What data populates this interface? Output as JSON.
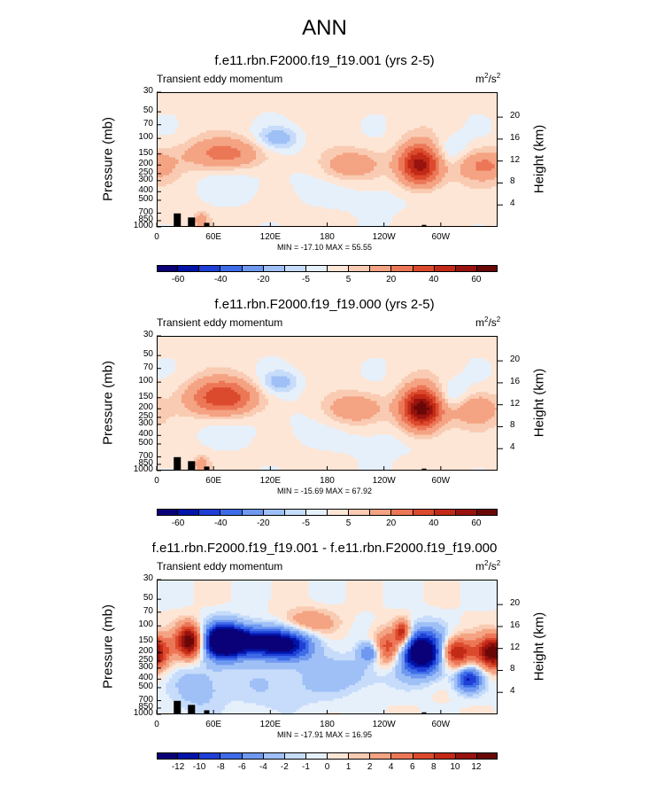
{
  "title": "ANN",
  "chart_data": [
    {
      "type": "heatmap",
      "title": "f.e11.rbn.F2000.f19_f19.001 (yrs 2-5)",
      "subtitle": "Transient eddy momentum",
      "units_base": "m",
      "units_exp1": "2",
      "units_mid": "/s",
      "units_exp2": "2",
      "ylabel": "Pressure (mb)",
      "y2label": "Height (km)",
      "y_ticks": [
        "30",
        "50",
        "70",
        "100",
        "150",
        "200",
        "250",
        "300",
        "400",
        "500",
        "700",
        "850",
        "1000"
      ],
      "y_tick_values": [
        30,
        50,
        70,
        100,
        150,
        200,
        250,
        300,
        400,
        500,
        700,
        850,
        1000
      ],
      "height_ticks": [
        "4",
        "8",
        "12",
        "16",
        "20"
      ],
      "height_tick_values": [
        4,
        8,
        12,
        16,
        20
      ],
      "x_ticks": [
        "0",
        "60E",
        "120E",
        "180",
        "120W",
        "60W"
      ],
      "x_tick_values": [
        0,
        60,
        120,
        180,
        240,
        300
      ],
      "xlim": [
        0,
        360
      ],
      "ylim": [
        1000,
        30
      ],
      "min_max_text": "MIN = -17.10  MAX =  55.55",
      "colorbar_labels": [
        "-60",
        "-40",
        "-20",
        "-5",
        "5",
        "20",
        "40",
        "60"
      ],
      "features": [
        {
          "lon": 72,
          "p": 150,
          "v": 25,
          "dlon": 28,
          "dlogp": 0.12
        },
        {
          "lon": 278,
          "p": 200,
          "v": 55,
          "dlon": 15,
          "dlogp": 0.16
        },
        {
          "lon": 205,
          "p": 200,
          "v": 17,
          "dlon": 22,
          "dlogp": 0.12
        },
        {
          "lon": 345,
          "p": 200,
          "v": 20,
          "dlon": 22,
          "dlogp": 0.12
        },
        {
          "lon": 128,
          "p": 100,
          "v": -15,
          "dlon": 15,
          "dlogp": 0.09
        },
        {
          "lon": 310,
          "p": 150,
          "v": -10,
          "dlon": 14,
          "dlogp": 0.12
        },
        {
          "lon": 100,
          "p": 250,
          "v": -4,
          "dlon": 40,
          "dlogp": 0.25
        },
        {
          "lon": 230,
          "p": 400,
          "v": -4,
          "dlon": 35,
          "dlogp": 0.2
        },
        {
          "lon": 47,
          "p": 850,
          "v": 15,
          "dlon": 6,
          "dlogp": 0.07
        }
      ]
    },
    {
      "type": "heatmap",
      "title": "f.e11.rbn.F2000.f19_f19.000 (yrs 2-5)",
      "subtitle": "Transient eddy momentum",
      "units_base": "m",
      "units_exp1": "2",
      "units_mid": "/s",
      "units_exp2": "2",
      "ylabel": "Pressure (mb)",
      "y2label": "Height (km)",
      "y_ticks": [
        "30",
        "50",
        "70",
        "100",
        "150",
        "200",
        "250",
        "300",
        "400",
        "500",
        "700",
        "850",
        "1000"
      ],
      "y_tick_values": [
        30,
        50,
        70,
        100,
        150,
        200,
        250,
        300,
        400,
        500,
        700,
        850,
        1000
      ],
      "height_ticks": [
        "4",
        "8",
        "12",
        "16",
        "20"
      ],
      "height_tick_values": [
        4,
        8,
        12,
        16,
        20
      ],
      "x_ticks": [
        "0",
        "60E",
        "120E",
        "180",
        "120W",
        "60W"
      ],
      "x_tick_values": [
        0,
        60,
        120,
        180,
        240,
        300
      ],
      "xlim": [
        0,
        360
      ],
      "ylim": [
        1000,
        30
      ],
      "min_max_text": "MIN = -15.69  MAX =  67.92",
      "colorbar_labels": [
        "-60",
        "-40",
        "-20",
        "-5",
        "5",
        "20",
        "40",
        "60"
      ],
      "features": [
        {
          "lon": 70,
          "p": 150,
          "v": 40,
          "dlon": 25,
          "dlogp": 0.14
        },
        {
          "lon": 280,
          "p": 200,
          "v": 67,
          "dlon": 15,
          "dlogp": 0.16
        },
        {
          "lon": 208,
          "p": 200,
          "v": 18,
          "dlon": 22,
          "dlogp": 0.12
        },
        {
          "lon": 335,
          "p": 200,
          "v": 18,
          "dlon": 18,
          "dlogp": 0.12
        },
        {
          "lon": 130,
          "p": 100,
          "v": -14,
          "dlon": 14,
          "dlogp": 0.09
        },
        {
          "lon": 310,
          "p": 150,
          "v": -12,
          "dlon": 14,
          "dlogp": 0.12
        },
        {
          "lon": 100,
          "p": 250,
          "v": -4,
          "dlon": 40,
          "dlogp": 0.25
        },
        {
          "lon": 235,
          "p": 400,
          "v": -4,
          "dlon": 35,
          "dlogp": 0.2
        },
        {
          "lon": 47,
          "p": 850,
          "v": 15,
          "dlon": 6,
          "dlogp": 0.07
        }
      ]
    },
    {
      "type": "heatmap",
      "title": "f.e11.rbn.F2000.f19_f19.001 - f.e11.rbn.F2000.f19_f19.000",
      "subtitle": "Transient eddy momentum",
      "units_base": "m",
      "units_exp1": "2",
      "units_mid": "/s",
      "units_exp2": "2",
      "ylabel": "Pressure (mb)",
      "y2label": "Height (km)",
      "y_ticks": [
        "30",
        "50",
        "70",
        "100",
        "150",
        "200",
        "250",
        "300",
        "400",
        "500",
        "700",
        "850",
        "1000"
      ],
      "y_tick_values": [
        30,
        50,
        70,
        100,
        150,
        200,
        250,
        300,
        400,
        500,
        700,
        850,
        1000
      ],
      "height_ticks": [
        "4",
        "8",
        "12",
        "16",
        "20"
      ],
      "height_tick_values": [
        4,
        8,
        12,
        16,
        20
      ],
      "x_ticks": [
        "0",
        "60E",
        "120E",
        "180",
        "120W",
        "60W"
      ],
      "x_tick_values": [
        0,
        60,
        120,
        180,
        240,
        300
      ],
      "xlim": [
        0,
        360
      ],
      "ylim": [
        1000,
        30
      ],
      "min_max_text": "MIN = -17.91  MAX =  16.95",
      "colorbar_labels": [
        "-12",
        "-10",
        "-8",
        "-6",
        "-4",
        "-2",
        "-1",
        "0",
        "1",
        "2",
        "4",
        "6",
        "8",
        "10",
        "12"
      ],
      "features": [
        {
          "lon": 35,
          "p": 150,
          "v": 15,
          "dlon": 10,
          "dlogp": 0.13
        },
        {
          "lon": 70,
          "p": 150,
          "v": -17,
          "dlon": 15,
          "dlogp": 0.14
        },
        {
          "lon": 105,
          "p": 150,
          "v": -12,
          "dlon": 25,
          "dlogp": 0.12
        },
        {
          "lon": 140,
          "p": 170,
          "v": -9,
          "dlon": 20,
          "dlogp": 0.12
        },
        {
          "lon": 280,
          "p": 200,
          "v": -17,
          "dlon": 18,
          "dlogp": 0.17
        },
        {
          "lon": 225,
          "p": 200,
          "v": -7,
          "dlon": 8,
          "dlogp": 0.08
        },
        {
          "lon": 245,
          "p": 180,
          "v": 9,
          "dlon": 12,
          "dlogp": 0.14
        },
        {
          "lon": 260,
          "p": 120,
          "v": 10,
          "dlon": 6,
          "dlogp": 0.1
        },
        {
          "lon": 315,
          "p": 200,
          "v": 12,
          "dlon": 12,
          "dlogp": 0.12
        },
        {
          "lon": 355,
          "p": 200,
          "v": 14,
          "dlon": 12,
          "dlogp": 0.13
        },
        {
          "lon": 330,
          "p": 400,
          "v": -10,
          "dlon": 10,
          "dlogp": 0.1
        },
        {
          "lon": 160,
          "p": 90,
          "v": 4,
          "dlon": 20,
          "dlogp": 0.1
        },
        {
          "lon": 200,
          "p": 350,
          "v": -3,
          "dlon": 30,
          "dlogp": 0.15
        },
        {
          "lon": 130,
          "p": 500,
          "v": -2,
          "dlon": 35,
          "dlogp": 0.2
        },
        {
          "lon": 45,
          "p": 500,
          "v": -3,
          "dlon": 20,
          "dlogp": 0.2
        }
      ]
    }
  ],
  "colors": {
    "abs_levels": [
      -60,
      -50,
      -40,
      -30,
      -20,
      -10,
      -5,
      0,
      5,
      10,
      20,
      30,
      40,
      50,
      60
    ],
    "diff_levels": [
      -12,
      -10,
      -8,
      -6,
      -4,
      -2,
      -1,
      0,
      1,
      2,
      4,
      6,
      8,
      10,
      12
    ],
    "palette": [
      "#0a0077",
      "#0014a8",
      "#1f3fd6",
      "#3e6ce8",
      "#6f98f0",
      "#9fc0f6",
      "#c6dcfa",
      "#e6f0fb",
      "#fde6d6",
      "#f9cbb2",
      "#f4a383",
      "#ec7757",
      "#dc4a2e",
      "#c22a17",
      "#98130f",
      "#6a0808"
    ],
    "topography": "#000000"
  }
}
